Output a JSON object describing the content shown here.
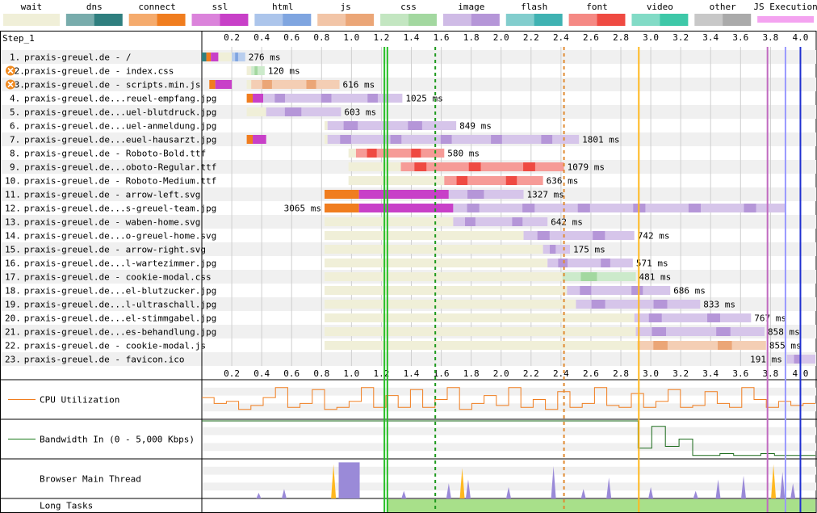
{
  "legend": [
    {
      "label": "wait",
      "color": "#f0efd8"
    },
    {
      "label": "dns",
      "color": "#2f7f7f"
    },
    {
      "label": "connect",
      "color": "#f07d1f"
    },
    {
      "label": "ssl",
      "color": "#c840c8"
    },
    {
      "label": "html",
      "color": "#7fa5e0"
    },
    {
      "label": "js",
      "color": "#eba677"
    },
    {
      "label": "css",
      "color": "#a3d8a0"
    },
    {
      "label": "image",
      "color": "#b596d8"
    },
    {
      "label": "flash",
      "color": "#3fb2b2"
    },
    {
      "label": "font",
      "color": "#ef4a42"
    },
    {
      "label": "video",
      "color": "#3ec8a8"
    },
    {
      "label": "other",
      "color": "#aaaaaa"
    },
    {
      "label": "JS Execution",
      "color": "#f4a3f0"
    }
  ],
  "step_label": "Step_1",
  "chart_data": {
    "type": "waterfall",
    "x_unit": "s",
    "x_range": [
      0,
      4.1
    ],
    "ticks": [
      "0.2",
      "0.4",
      "0.6",
      "0.8",
      "1.0",
      "1.2",
      "1.4",
      "1.6",
      "1.8",
      "2.0",
      "2.2",
      "2.4",
      "2.6",
      "2.8",
      "3.0",
      "3.2",
      "3.4",
      "3.6",
      "3.8",
      "4.0"
    ],
    "markers": [
      {
        "t": 1.22,
        "color": "#28c028",
        "style": "solid"
      },
      {
        "t": 1.24,
        "color": "#28c028",
        "style": "solid"
      },
      {
        "t": 1.56,
        "color": "#1e9a1e",
        "style": "dashed"
      },
      {
        "t": 2.42,
        "color": "#e08a30",
        "style": "dashed"
      },
      {
        "t": 2.92,
        "color": "#ffb820",
        "style": "solid"
      },
      {
        "t": 3.78,
        "color": "#c06ac0",
        "style": "solid"
      },
      {
        "t": 3.9,
        "color": "#9898ff",
        "style": "solid"
      },
      {
        "t": 4.0,
        "color": "#2030d0",
        "style": "solid"
      }
    ],
    "requests": [
      {
        "num": "1.",
        "label": "praxis-greuel.de - /",
        "type": "html",
        "timing_label": "276 ms",
        "warn": false,
        "dns": [
          0.0,
          0.03
        ],
        "connect": [
          0.03,
          0.06
        ],
        "ssl": [
          0.06,
          0.11
        ],
        "wait": [
          0.11,
          0.2
        ],
        "content": [
          0.2,
          0.29
        ]
      },
      {
        "num": "2.",
        "label": "praxis-greuel.de - index.css",
        "type": "css",
        "timing_label": "120 ms",
        "warn": true,
        "wait": [
          0.3,
          0.33
        ],
        "content": [
          0.33,
          0.42
        ]
      },
      {
        "num": "3.",
        "label": "praxis-greuel.de - scripts.min.js",
        "type": "js",
        "timing_label": "616 ms",
        "warn": true,
        "connect": [
          0.05,
          0.09
        ],
        "ssl": [
          0.09,
          0.2
        ],
        "wait": [
          0.3,
          0.33
        ],
        "content": [
          0.33,
          0.92
        ]
      },
      {
        "num": "4.",
        "label": "praxis-greuel.de...reuel-empfang.jpg",
        "type": "image",
        "timing_label": "1025 ms",
        "warn": false,
        "connect": [
          0.3,
          0.34
        ],
        "ssl": [
          0.34,
          0.41
        ],
        "wait": [
          0.33,
          0.41
        ],
        "content": [
          0.41,
          1.34
        ]
      },
      {
        "num": "5.",
        "label": "praxis-greuel.de...uel-blutdruck.jpg",
        "type": "image",
        "timing_label": "603 ms",
        "warn": false,
        "wait": [
          0.3,
          0.43
        ],
        "content": [
          0.43,
          0.93
        ]
      },
      {
        "num": "6.",
        "label": "praxis-greuel.de...uel-anmeldung.jpg",
        "type": "image",
        "timing_label": "849 ms",
        "warn": false,
        "wait": [
          0.82,
          0.84
        ],
        "content": [
          0.84,
          1.7
        ]
      },
      {
        "num": "7.",
        "label": "praxis-greuel.de...euel-hausarzt.jpg",
        "type": "image",
        "timing_label": "1801 ms",
        "warn": false,
        "connect": [
          0.3,
          0.34
        ],
        "ssl": [
          0.34,
          0.43
        ],
        "wait": [
          0.82,
          0.84
        ],
        "content": [
          0.84,
          2.52
        ]
      },
      {
        "num": "8.",
        "label": "praxis-greuel.de - Roboto-Bold.ttf",
        "type": "font",
        "timing_label": "580 ms",
        "warn": false,
        "wait": [
          0.98,
          1.03
        ],
        "content": [
          1.03,
          1.62
        ]
      },
      {
        "num": "9.",
        "label": "praxis-greuel.de...oboto-Regular.ttf",
        "type": "font",
        "timing_label": "1079 ms",
        "warn": false,
        "wait": [
          0.98,
          1.33
        ],
        "content": [
          1.33,
          2.42
        ]
      },
      {
        "num": "10.",
        "label": "praxis-greuel.de - Roboto-Medium.ttf",
        "type": "font",
        "timing_label": "636 ms",
        "warn": false,
        "wait": [
          0.98,
          1.62
        ],
        "content": [
          1.62,
          2.28
        ]
      },
      {
        "num": "11.",
        "label": "praxis-greuel.de - arrow-left.svg",
        "type": "image",
        "timing_label": "1327 ms",
        "warn": false,
        "connect": [
          0.82,
          1.05
        ],
        "ssl": [
          1.05,
          1.65
        ],
        "wait": [
          1.65,
          1.65
        ],
        "content": [
          1.65,
          2.15
        ]
      },
      {
        "num": "12.",
        "label": "praxis-greuel.de...s-greuel-team.jpg",
        "type": "image",
        "timing_label": "3065 ms",
        "warn": false,
        "timing_left": true,
        "connect": [
          0.82,
          1.05
        ],
        "ssl": [
          1.05,
          1.68
        ],
        "wait": [
          1.68,
          1.68
        ],
        "content": [
          1.68,
          3.9
        ]
      },
      {
        "num": "13.",
        "label": "praxis-greuel.de - waben-home.svg",
        "type": "image",
        "timing_label": "642 ms",
        "warn": false,
        "wait": [
          0.82,
          1.68
        ],
        "content": [
          1.68,
          2.31
        ]
      },
      {
        "num": "14.",
        "label": "praxis-greuel.de...o-greuel-home.svg",
        "type": "image",
        "timing_label": "742 ms",
        "warn": false,
        "wait": [
          0.82,
          2.15
        ],
        "content": [
          2.15,
          2.89
        ]
      },
      {
        "num": "15.",
        "label": "praxis-greuel.de - arrow-right.svg",
        "type": "image",
        "timing_label": "175 ms",
        "warn": false,
        "wait": [
          0.82,
          2.28
        ],
        "content": [
          2.28,
          2.46
        ]
      },
      {
        "num": "16.",
        "label": "praxis-greuel.de...l-wartezimmer.jpg",
        "type": "image",
        "timing_label": "571 ms",
        "warn": false,
        "wait": [
          0.82,
          2.31
        ],
        "content": [
          2.31,
          2.88
        ]
      },
      {
        "num": "17.",
        "label": "praxis-greuel.de - cookie-modal.css",
        "type": "css",
        "timing_label": "481 ms",
        "warn": false,
        "wait": [
          0.82,
          2.41
        ],
        "content": [
          2.41,
          2.9
        ]
      },
      {
        "num": "18.",
        "label": "praxis-greuel.de...el-blutzucker.jpg",
        "type": "image",
        "timing_label": "686 ms",
        "warn": false,
        "wait": [
          0.82,
          2.44
        ],
        "content": [
          2.44,
          3.13
        ]
      },
      {
        "num": "19.",
        "label": "praxis-greuel.de...l-ultraschall.jpg",
        "type": "image",
        "timing_label": "833 ms",
        "warn": false,
        "wait": [
          0.82,
          2.5
        ],
        "content": [
          2.5,
          3.33
        ]
      },
      {
        "num": "20.",
        "label": "praxis-greuel.de...el-stimmgabel.jpg",
        "type": "image",
        "timing_label": "767 ms",
        "warn": false,
        "wait": [
          0.82,
          2.89
        ],
        "content": [
          2.89,
          3.67
        ]
      },
      {
        "num": "21.",
        "label": "praxis-greuel.de...es-behandlung.jpg",
        "type": "image",
        "timing_label": "858 ms",
        "warn": false,
        "wait": [
          0.82,
          2.9
        ],
        "content": [
          2.9,
          3.76
        ]
      },
      {
        "num": "22.",
        "label": "praxis-greuel.de - cookie-modal.js",
        "type": "js",
        "timing_label": "855 ms",
        "warn": false,
        "wait": [
          0.82,
          2.91
        ],
        "content": [
          2.91,
          3.77
        ]
      },
      {
        "num": "23.",
        "label": "praxis-greuel.de - favicon.ico",
        "type": "image",
        "timing_label": "191 ms",
        "warn": false,
        "timing_left": true,
        "wait": [
          3.9,
          3.91
        ],
        "content": [
          3.91,
          4.1
        ]
      }
    ],
    "cpu_utilization": [
      0.55,
      0.4,
      0.45,
      0.25,
      0.35,
      0.55,
      0.8,
      0.3,
      0.4,
      0.75,
      0.25,
      0.3,
      0.45,
      0.8,
      0.3,
      0.6,
      0.3,
      0.75,
      0.3,
      0.5,
      0.8,
      0.25,
      0.4,
      0.6,
      0.35,
      0.8,
      0.3,
      0.5,
      0.25,
      0.7,
      0.3,
      0.4,
      0.8,
      0.35,
      0.3,
      0.65,
      0.3,
      0.45,
      0.75,
      0.3,
      0.35,
      0.7,
      0.4,
      0.3,
      0.8,
      0.5,
      0.3,
      0.45,
      0.35,
      0.4
    ],
    "bandwidth_in": [
      1,
      1,
      1,
      1,
      1,
      1,
      1,
      1,
      1,
      1,
      1,
      1,
      1,
      1,
      1,
      1,
      1,
      1,
      1,
      1,
      1,
      1,
      1,
      1,
      1,
      1,
      1,
      1,
      1,
      1,
      1,
      1,
      0.25,
      0.85,
      0.3,
      0.5,
      0.05,
      0.05,
      0.1,
      0.05,
      0.05,
      0.1,
      0.05,
      0.05,
      0.05
    ],
    "bandwidth_label": "Bandwidth In (0 - 5,000 Kbps)",
    "main_thread_label": "Browser Main Thread",
    "cpu_label": "CPU Utilization",
    "long_tasks_label": "Long Tasks",
    "long_tasks_range": [
      1.24,
      4.1
    ],
    "main_thread_bursts": [
      {
        "t": 0.38,
        "h": 0.15,
        "color": "#9a8ad8"
      },
      {
        "t": 0.55,
        "h": 0.25,
        "color": "#9a8ad8"
      },
      {
        "t": 0.88,
        "h": 0.9,
        "color": "#ffb820"
      },
      {
        "t": 0.92,
        "h": 0.95,
        "color": "#9a8ad8"
      },
      {
        "t": 1.35,
        "h": 0.2,
        "color": "#9a8ad8"
      },
      {
        "t": 1.65,
        "h": 0.4,
        "color": "#9a8ad8"
      },
      {
        "t": 1.74,
        "h": 0.8,
        "color": "#ffb820"
      },
      {
        "t": 1.78,
        "h": 0.5,
        "color": "#9a8ad8"
      },
      {
        "t": 2.05,
        "h": 0.3,
        "color": "#9a8ad8"
      },
      {
        "t": 2.35,
        "h": 0.85,
        "color": "#9a8ad8"
      },
      {
        "t": 2.55,
        "h": 0.25,
        "color": "#9a8ad8"
      },
      {
        "t": 2.72,
        "h": 0.55,
        "color": "#9a8ad8"
      },
      {
        "t": 3.0,
        "h": 0.3,
        "color": "#9a8ad8"
      },
      {
        "t": 3.3,
        "h": 0.2,
        "color": "#9a8ad8"
      },
      {
        "t": 3.45,
        "h": 0.5,
        "color": "#9a8ad8"
      },
      {
        "t": 3.62,
        "h": 0.6,
        "color": "#9a8ad8"
      },
      {
        "t": 3.82,
        "h": 0.9,
        "color": "#ffb820"
      },
      {
        "t": 3.88,
        "h": 0.7,
        "color": "#9a8ad8"
      },
      {
        "t": 3.95,
        "h": 0.4,
        "color": "#9a8ad8"
      }
    ]
  }
}
